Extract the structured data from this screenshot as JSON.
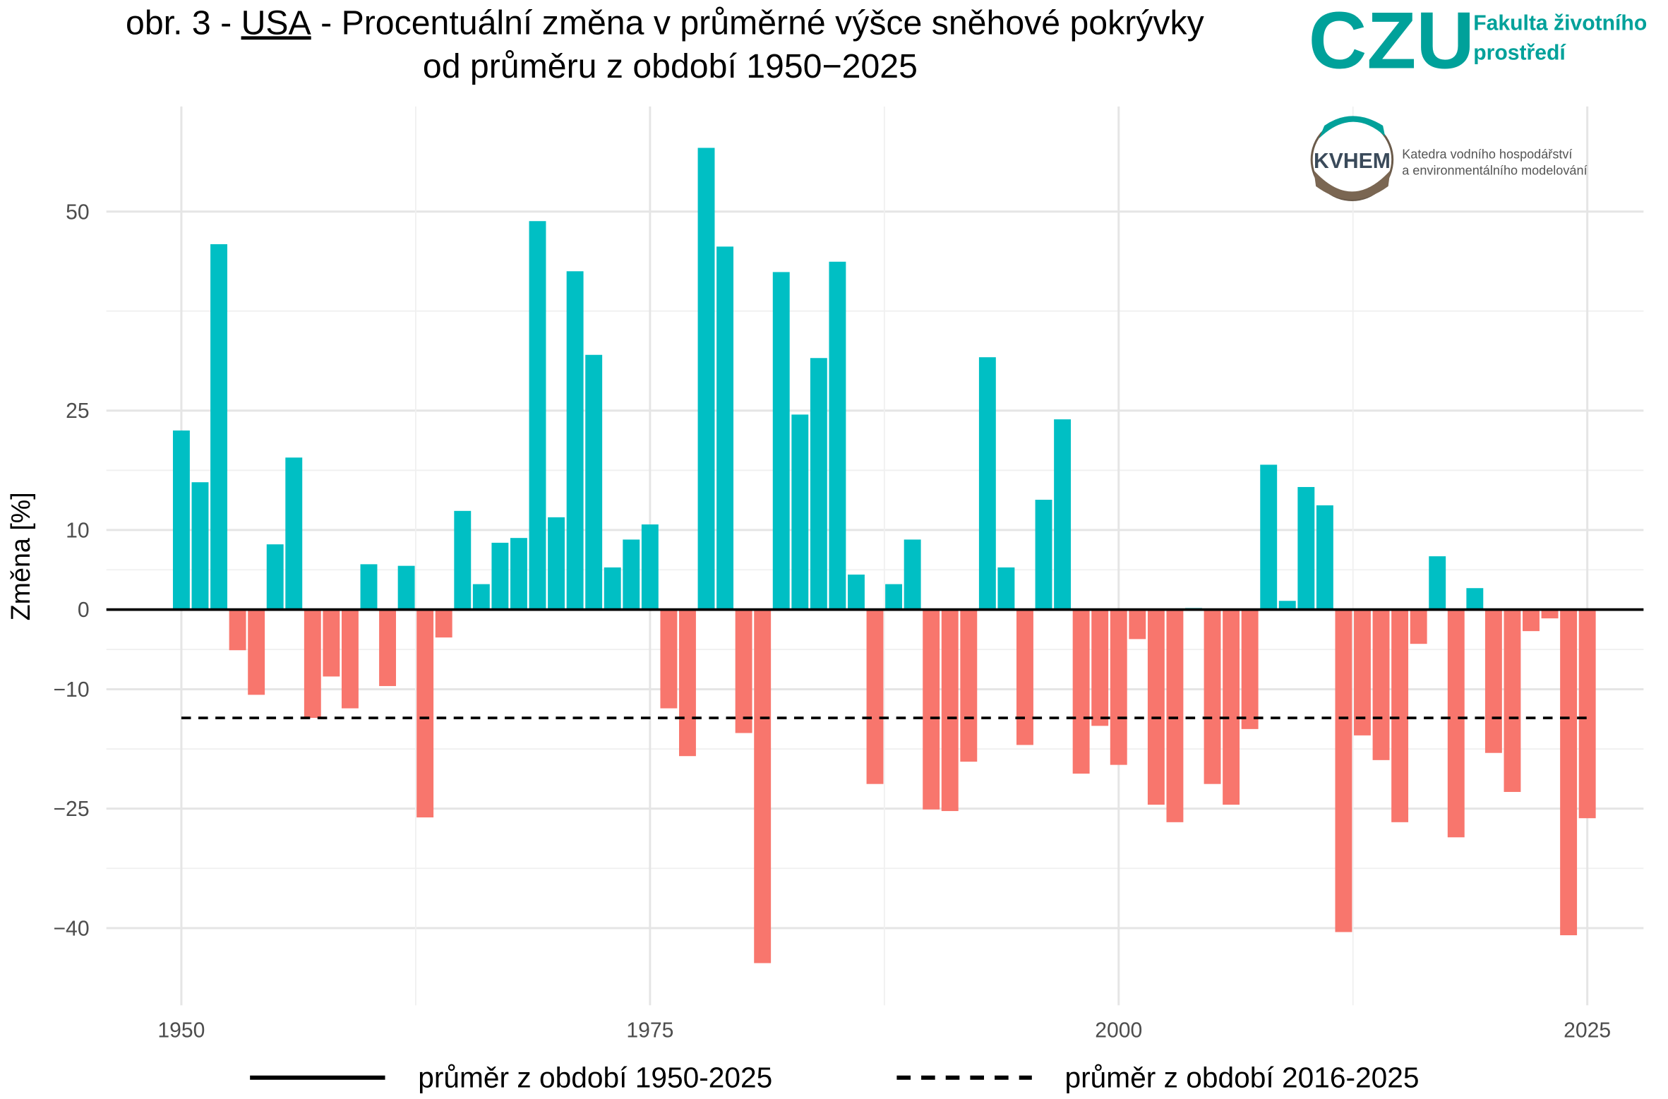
{
  "chart_data": {
    "type": "bar",
    "title": {
      "line1": [
        "obr. 3 -",
        "USA",
        "- Procentuální změna v průměrné výšce sněhové pokrývky"
      ],
      "line2": "od průměru z období 1950−2025"
    },
    "y_label": "Změna [%]",
    "x": [
      1950,
      1951,
      1952,
      1953,
      1954,
      1955,
      1956,
      1957,
      1958,
      1959,
      1960,
      1961,
      1962,
      1963,
      1964,
      1965,
      1966,
      1967,
      1968,
      1969,
      1970,
      1971,
      1972,
      1973,
      1974,
      1975,
      1976,
      1977,
      1978,
      1979,
      1980,
      1981,
      1982,
      1983,
      1984,
      1985,
      1986,
      1987,
      1988,
      1989,
      1990,
      1991,
      1992,
      1993,
      1994,
      1995,
      1996,
      1997,
      1998,
      1999,
      2000,
      2001,
      2002,
      2003,
      2004,
      2005,
      2006,
      2007,
      2008,
      2009,
      2010,
      2011,
      2012,
      2013,
      2014,
      2015,
      2016,
      2017,
      2018,
      2019,
      2020,
      2021,
      2022,
      2023,
      2024,
      2025
    ],
    "values": [
      22.5,
      16.0,
      45.9,
      -5.1,
      -10.7,
      8.2,
      19.1,
      -13.6,
      -8.4,
      -12.4,
      5.7,
      -9.6,
      5.5,
      -26.1,
      -3.5,
      12.4,
      3.2,
      8.4,
      9.0,
      48.8,
      11.6,
      42.5,
      32.0,
      5.3,
      8.8,
      10.7,
      -12.4,
      -18.4,
      58.0,
      45.6,
      -15.5,
      -44.4,
      42.4,
      24.5,
      31.6,
      43.7,
      4.4,
      -21.9,
      3.2,
      8.8,
      -25.1,
      -25.3,
      -19.1,
      31.7,
      5.3,
      -17.0,
      13.8,
      23.9,
      -20.6,
      -14.6,
      -19.5,
      -3.7,
      -24.5,
      -26.7,
      0.2,
      -21.9,
      -24.5,
      -15.0,
      18.2,
      1.1,
      15.4,
      13.1,
      -40.5,
      -15.8,
      -18.9,
      -26.7,
      -4.3,
      6.7,
      -28.6,
      2.7,
      -18.0,
      -22.9,
      -2.7,
      -1.1,
      -40.9,
      -26.2
    ],
    "colors": {
      "positive": "#00bfc4",
      "negative": "#f8766d"
    },
    "xlim": [
      1946,
      2028
    ],
    "xticks": [
      1950,
      1975,
      2000,
      2025
    ],
    "ylim": [
      -49.7,
      63.2
    ],
    "yticks": [
      {
        "value": -40,
        "label": "−40"
      },
      {
        "value": -25,
        "label": "−25"
      },
      {
        "value": -10,
        "label": "−10"
      },
      0,
      10,
      25,
      50
    ],
    "grid": true,
    "reference_lines": [
      {
        "name": "průměr z období 1950-2025",
        "value": 0,
        "style": "solid"
      },
      {
        "name": "průměr z období 2016-2025",
        "value": -13.6,
        "style": "dashed"
      }
    ],
    "logos": {
      "czu": "CZU",
      "faculty": [
        "Fakulta životního",
        "prostředí"
      ],
      "kvhem": "KVHEM",
      "department": [
        "Katedra vodního hospodářství",
        "a environmentálního modelování"
      ]
    }
  }
}
